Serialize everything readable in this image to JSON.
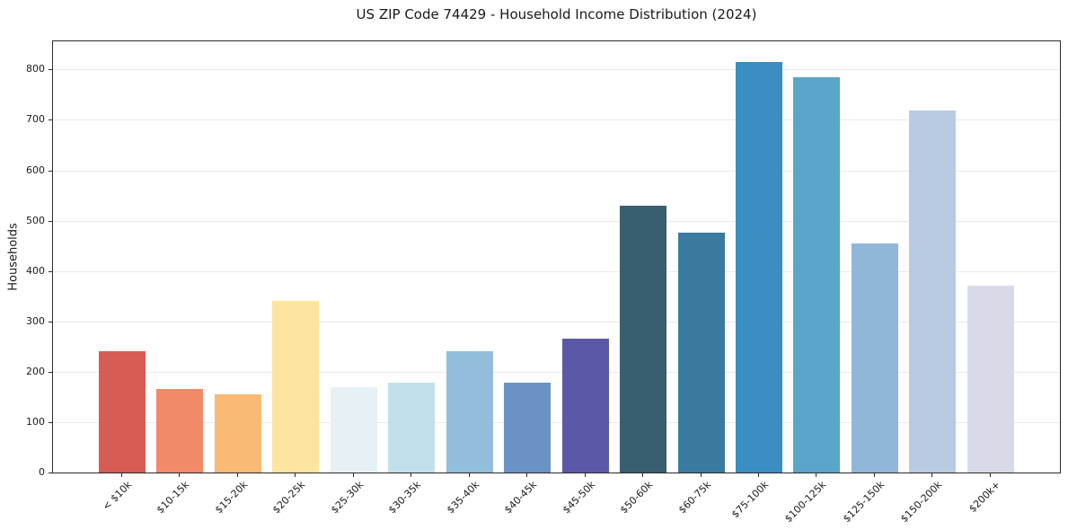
{
  "chart_data": {
    "type": "bar",
    "title": "US ZIP Code 74429 - Household Income Distribution (2024)",
    "xlabel": "",
    "ylabel": "Households",
    "categories": [
      "< $10k",
      "$10-15k",
      "$15-20k",
      "$20-25k",
      "$25-30k",
      "$30-35k",
      "$35-40k",
      "$40-45k",
      "$45-50k",
      "$50-60k",
      "$60-75k",
      "$75-100k",
      "$100-125k",
      "$125-150k",
      "$150-200k",
      "$200k+"
    ],
    "values": [
      240,
      165,
      156,
      340,
      170,
      178,
      240,
      179,
      266,
      529,
      477,
      815,
      785,
      454,
      718,
      371
    ],
    "bar_colors": [
      "#d85c53",
      "#f18a68",
      "#f9ba76",
      "#fde5a0",
      "#e6f1f6",
      "#c2e0eb",
      "#92bedb",
      "#6b92c4",
      "#5c58a8",
      "#395e70",
      "#3a7b9f",
      "#3a8ec2",
      "#5ba4ca",
      "#90b7da",
      "#b9cbe3",
      "#d9dae8"
    ],
    "yticks": [
      0,
      100,
      200,
      300,
      400,
      500,
      600,
      700,
      800
    ],
    "ylim": [
      0,
      856
    ],
    "grid": "horizontal-only",
    "legend_position": "none"
  },
  "colors": {
    "background": "#ffffff",
    "grid": "#e9e9ee",
    "spine": "#2b2b2b",
    "text": "#1a1a1a"
  }
}
